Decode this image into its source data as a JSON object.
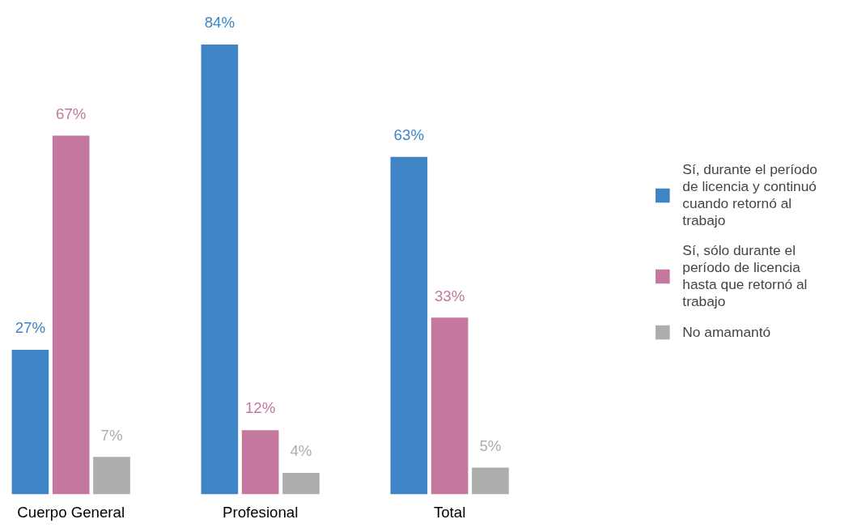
{
  "chart_data": {
    "type": "bar",
    "categories": [
      "Cuerpo General",
      "Profesional",
      "Total"
    ],
    "series": [
      {
        "name": "Sí, durante el período de licencia y continuó cuando retornó al trabajo",
        "color": "#3f84c5",
        "values": [
          27,
          84,
          63
        ],
        "value_labels": [
          "27%",
          "84%",
          "63%"
        ]
      },
      {
        "name": "Sí, sólo durante el período de licencia hasta que retornó al trabajo",
        "color": "#c4789f",
        "values": [
          67,
          12,
          33
        ],
        "value_labels": [
          "67%",
          "12%",
          "33%"
        ]
      },
      {
        "name": "No amamantó",
        "color": "#adadad",
        "values": [
          7,
          4,
          5
        ],
        "value_labels": [
          "7%",
          "4%",
          "5%"
        ]
      }
    ],
    "legend": "right",
    "grid": false
  }
}
